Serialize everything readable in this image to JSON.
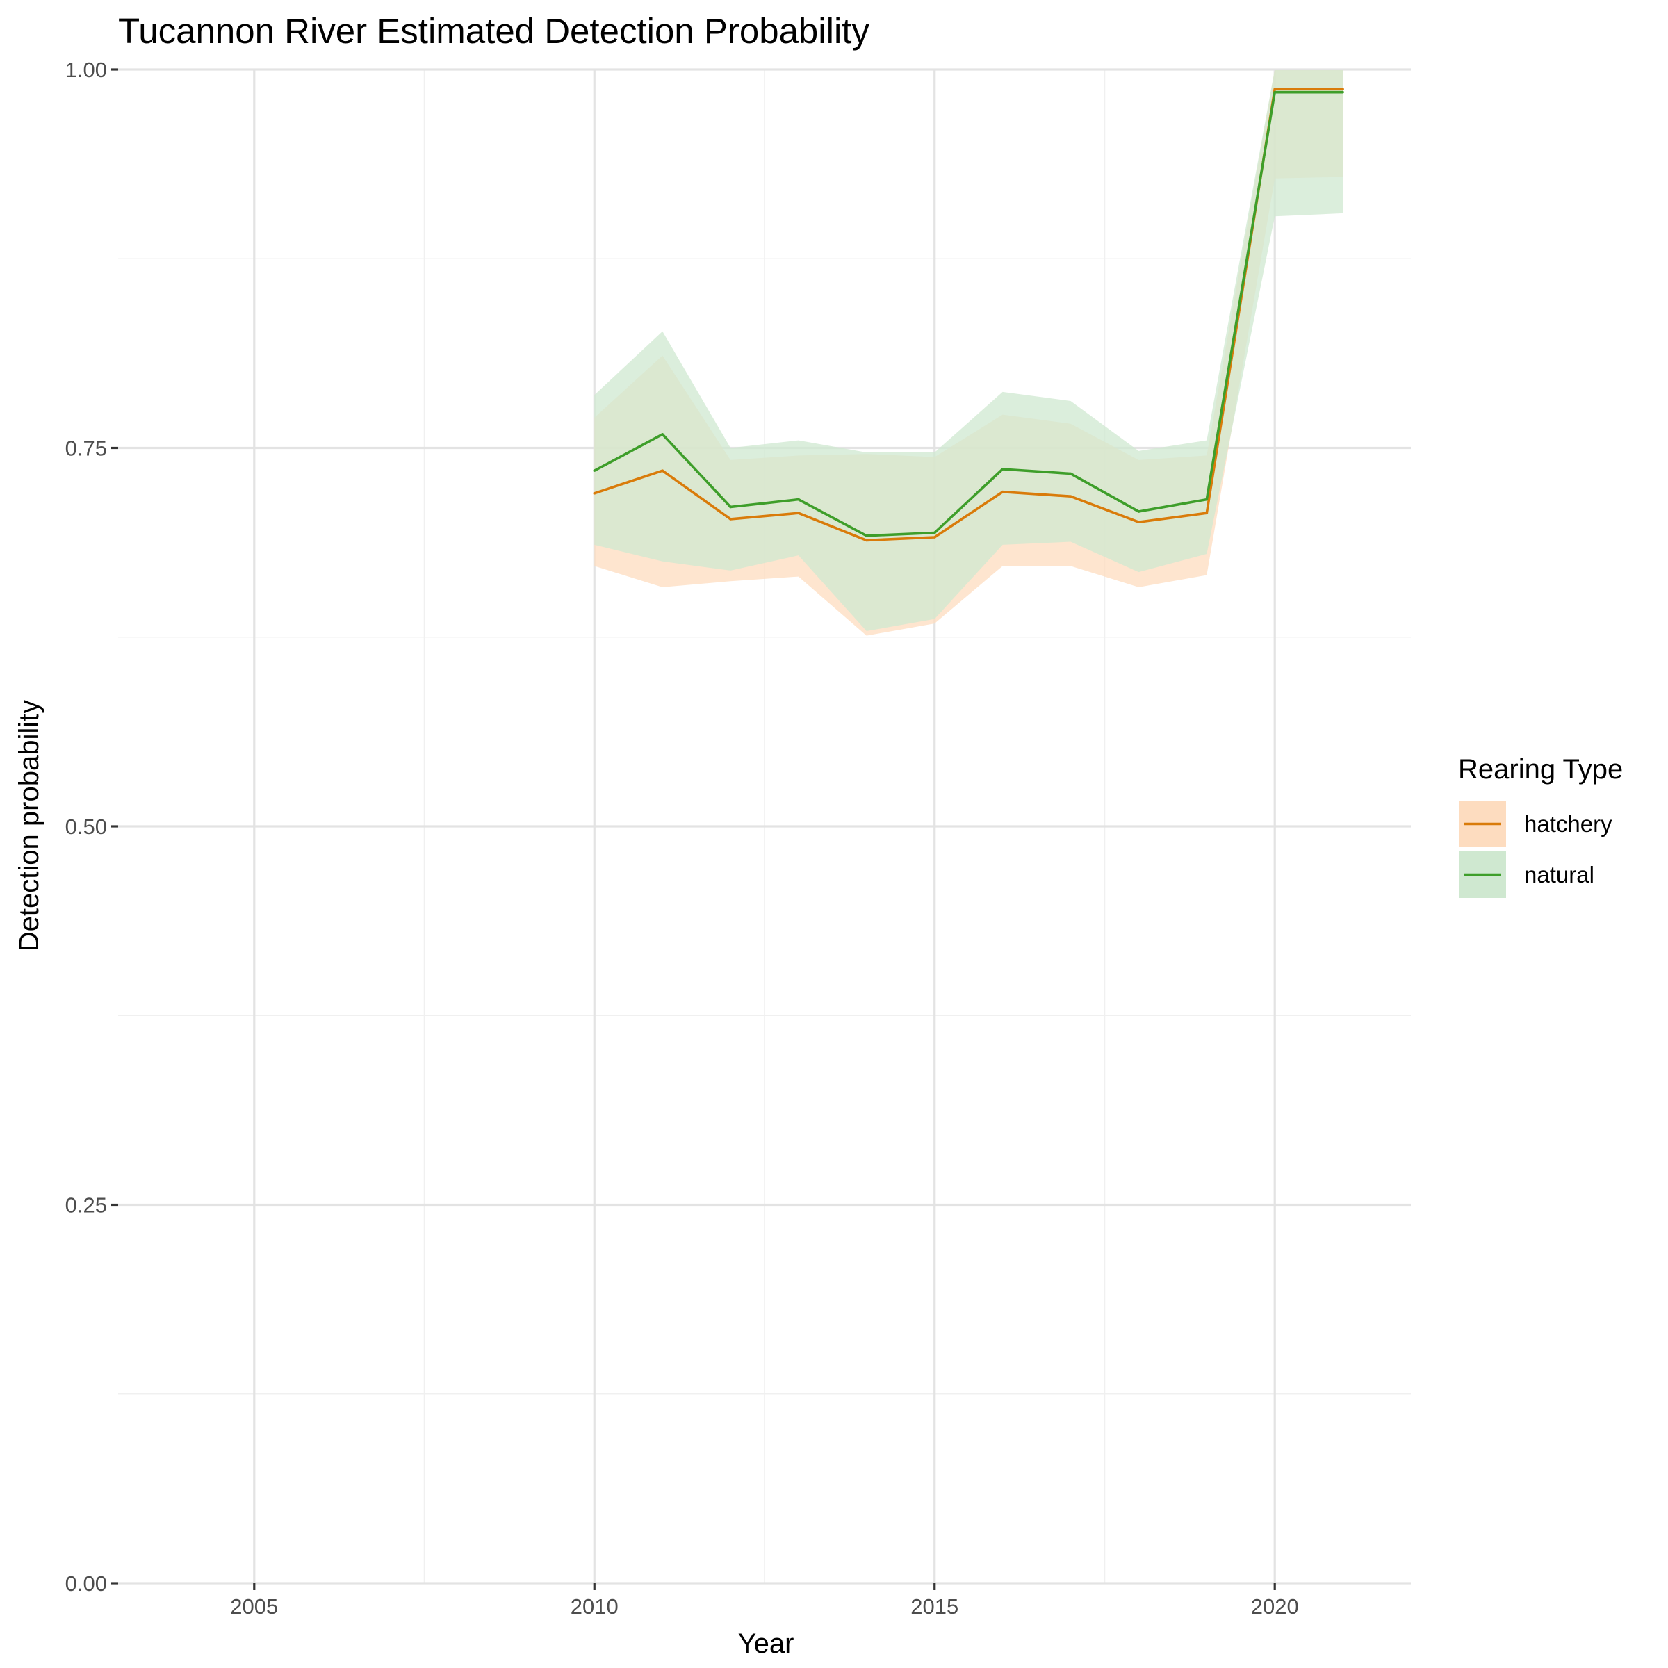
{
  "chart_data": {
    "type": "line",
    "title": "Tucannon River Estimated Detection Probability",
    "xlabel": "Year",
    "ylabel": "Detection probability",
    "xlim": [
      2003,
      2022
    ],
    "ylim": [
      0,
      1
    ],
    "x_ticks": [
      2005,
      2010,
      2015,
      2020
    ],
    "x_tick_labels": [
      "2005",
      "2010",
      "2015",
      "2020"
    ],
    "y_ticks": [
      0,
      0.25,
      0.5,
      0.75,
      1
    ],
    "y_tick_labels": [
      "0.00",
      "0.25",
      "0.50",
      "0.75",
      "1.00"
    ],
    "grid": true,
    "legend": {
      "title": "Rearing Type",
      "position": "right"
    },
    "x": [
      2010,
      2011,
      2012,
      2013,
      2014,
      2015,
      2016,
      2017,
      2018,
      2019,
      2020,
      2021
    ],
    "series": [
      {
        "name": "hatchery",
        "color": "#D97B0A",
        "fill": "#FDDCBF",
        "values": [
          0.72,
          0.735,
          0.703,
          0.707,
          0.689,
          0.691,
          0.721,
          0.718,
          0.701,
          0.707,
          0.987,
          0.987
        ],
        "lower": [
          0.672,
          0.658,
          0.662,
          0.665,
          0.626,
          0.634,
          0.672,
          0.672,
          0.658,
          0.666,
          0.928,
          0.929
        ],
        "upper": [
          0.77,
          0.811,
          0.742,
          0.745,
          0.746,
          0.744,
          0.772,
          0.766,
          0.742,
          0.745,
          1.0,
          1.0
        ]
      },
      {
        "name": "natural",
        "color": "#3E9E2A",
        "fill": "#CFE8D0",
        "values": [
          0.735,
          0.759,
          0.711,
          0.716,
          0.692,
          0.694,
          0.736,
          0.733,
          0.708,
          0.716,
          0.985,
          0.985
        ],
        "lower": [
          0.686,
          0.675,
          0.669,
          0.679,
          0.629,
          0.637,
          0.686,
          0.688,
          0.668,
          0.68,
          0.903,
          0.905
        ],
        "upper": [
          0.785,
          0.827,
          0.75,
          0.755,
          0.747,
          0.747,
          0.787,
          0.781,
          0.748,
          0.755,
          1.0,
          1.0
        ]
      }
    ]
  }
}
